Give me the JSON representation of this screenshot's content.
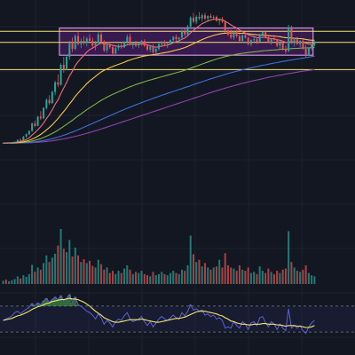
{
  "chart_data": {
    "type": "candlestick",
    "title": "",
    "xlabel": "",
    "ylabel": "",
    "axes_labels_visible": false,
    "grid": true,
    "colors": {
      "background": "#131722",
      "grid": "#1e2230",
      "candle_up": "#26a69a",
      "candle_down": "#ef5350",
      "range_box_fill": "#7b1fa2",
      "range_box_border": "#ce93d8",
      "horizontal_levels": "#f5e56b",
      "ma_fast": "#ef6c7c",
      "ma_mid": "#f5c542",
      "ma_slow": "#7cb342",
      "ma_200": "#3f6fd8",
      "ma_long": "#8e44ad",
      "oscillator_line": "#5c5fd6",
      "oscillator_signal": "#f5e56b",
      "oscillator_fill": "#4caf50"
    },
    "price_ylim": [
      0,
      100
    ],
    "horizontal_levels": [
      86,
      79,
      62
    ],
    "range_box": {
      "bar_start": 20,
      "bar_end": 108,
      "price_high": 88,
      "price_low": 71
    },
    "candles_ohlc": [
      [
        16.0,
        16.3,
        15.8,
        16.2
      ],
      [
        16.2,
        16.4,
        15.9,
        16.0
      ],
      [
        16.0,
        16.5,
        15.9,
        16.4
      ],
      [
        16.4,
        16.7,
        16.2,
        16.5
      ],
      [
        16.5,
        17.0,
        16.3,
        16.8
      ],
      [
        16.8,
        18.2,
        16.6,
        18.0
      ],
      [
        18.0,
        19.0,
        17.2,
        17.5
      ],
      [
        17.5,
        20.5,
        17.3,
        20.0
      ],
      [
        20.0,
        22.0,
        19.5,
        21.5
      ],
      [
        21.5,
        24.0,
        21.0,
        23.6
      ],
      [
        23.6,
        29.0,
        23.0,
        28.2
      ],
      [
        28.2,
        30.0,
        26.0,
        26.8
      ],
      [
        26.8,
        33.0,
        26.5,
        32.5
      ],
      [
        32.5,
        36.0,
        30.5,
        31.5
      ],
      [
        31.5,
        38.5,
        31.0,
        38.0
      ],
      [
        38.0,
        44.0,
        37.0,
        43.0
      ],
      [
        43.0,
        46.0,
        40.0,
        41.0
      ],
      [
        41.0,
        49.0,
        40.5,
        48.0
      ],
      [
        48.0,
        55.0,
        46.0,
        54.0
      ],
      [
        54.0,
        59.0,
        51.0,
        52.5
      ],
      [
        52.5,
        66.0,
        52.0,
        65.0
      ],
      [
        65.0,
        70.0,
        60.0,
        62.0
      ],
      [
        62.0,
        71.0,
        61.5,
        70.0
      ],
      [
        70.0,
        80.0,
        68.0,
        78.5
      ],
      [
        78.5,
        82.0,
        73.0,
        75.0
      ],
      [
        75.0,
        84.0,
        74.0,
        83.0
      ],
      [
        83.0,
        86.0,
        77.0,
        78.0
      ],
      [
        78.0,
        81.5,
        75.5,
        80.0
      ],
      [
        80.0,
        83.0,
        77.5,
        79.0
      ],
      [
        79.0,
        82.5,
        76.5,
        81.5
      ],
      [
        81.5,
        84.0,
        79.0,
        80.0
      ],
      [
        80.0,
        82.0,
        76.0,
        77.0
      ],
      [
        77.0,
        80.0,
        74.0,
        78.5
      ],
      [
        78.5,
        86.0,
        77.5,
        84.0
      ],
      [
        84.0,
        85.5,
        78.0,
        79.0
      ],
      [
        79.0,
        80.5,
        73.0,
        74.0
      ],
      [
        74.0,
        78.0,
        72.5,
        77.5
      ],
      [
        77.5,
        79.5,
        75.0,
        76.0
      ],
      [
        76.0,
        77.0,
        71.0,
        72.0
      ],
      [
        72.0,
        76.5,
        71.5,
        75.5
      ],
      [
        75.5,
        78.0,
        74.0,
        77.0
      ],
      [
        77.0,
        79.0,
        75.0,
        76.0
      ],
      [
        76.0,
        80.0,
        75.5,
        79.5
      ],
      [
        79.5,
        84.0,
        78.0,
        82.5
      ],
      [
        82.5,
        84.5,
        77.0,
        78.0
      ],
      [
        78.0,
        79.5,
        75.0,
        78.8
      ],
      [
        78.8,
        80.0,
        76.0,
        77.0
      ],
      [
        77.0,
        79.0,
        75.5,
        78.5
      ],
      [
        78.5,
        80.5,
        77.0,
        80.0
      ],
      [
        80.0,
        81.0,
        76.0,
        77.0
      ],
      [
        77.0,
        78.0,
        73.5,
        74.5
      ],
      [
        74.5,
        77.0,
        73.0,
        76.5
      ],
      [
        76.5,
        78.0,
        72.0,
        73.0
      ],
      [
        73.0,
        75.5,
        71.5,
        75.0
      ],
      [
        75.0,
        78.5,
        74.0,
        78.0
      ],
      [
        78.0,
        80.0,
        76.0,
        79.5
      ],
      [
        79.5,
        80.5,
        76.5,
        78.0
      ],
      [
        78.0,
        79.0,
        75.5,
        78.5
      ],
      [
        78.5,
        81.0,
        77.5,
        80.5
      ],
      [
        80.5,
        83.0,
        79.0,
        82.5
      ],
      [
        82.5,
        84.0,
        80.0,
        81.0
      ],
      [
        81.0,
        82.5,
        79.0,
        82.0
      ],
      [
        82.0,
        87.0,
        81.5,
        86.0
      ],
      [
        86.0,
        88.0,
        83.0,
        84.0
      ],
      [
        84.0,
        90.0,
        83.5,
        89.0
      ],
      [
        89.0,
        95.5,
        88.0,
        94.5
      ],
      [
        94.5,
        97.5,
        91.0,
        92.0
      ],
      [
        92.0,
        96.0,
        90.5,
        95.0
      ],
      [
        95.0,
        98.0,
        93.0,
        94.0
      ],
      [
        94.0,
        97.0,
        92.0,
        96.0
      ],
      [
        96.0,
        97.5,
        93.0,
        94.0
      ],
      [
        94.0,
        96.0,
        92.5,
        95.5
      ],
      [
        95.5,
        97.0,
        94.0,
        94.5
      ],
      [
        94.5,
        96.0,
        93.0,
        95.0
      ],
      [
        95.0,
        95.8,
        92.0,
        92.5
      ],
      [
        92.5,
        94.0,
        90.0,
        93.5
      ],
      [
        93.5,
        95.0,
        91.0,
        92.0
      ],
      [
        92.0,
        92.5,
        85.0,
        86.5
      ],
      [
        86.5,
        88.0,
        83.0,
        84.0
      ],
      [
        84.0,
        87.0,
        81.0,
        82.0
      ],
      [
        82.0,
        86.0,
        80.5,
        85.0
      ],
      [
        85.0,
        87.0,
        82.0,
        83.0
      ],
      [
        83.0,
        84.5,
        79.0,
        80.0
      ],
      [
        80.0,
        84.0,
        79.0,
        83.5
      ],
      [
        83.5,
        85.0,
        81.5,
        82.0
      ],
      [
        82.0,
        82.5,
        77.0,
        78.0
      ],
      [
        78.0,
        81.0,
        76.5,
        80.5
      ],
      [
        80.5,
        83.0,
        79.0,
        81.0
      ],
      [
        81.0,
        82.0,
        78.0,
        79.5
      ],
      [
        79.5,
        84.5,
        79.0,
        84.0
      ],
      [
        84.0,
        86.0,
        82.0,
        85.5
      ],
      [
        85.5,
        86.5,
        81.5,
        82.0
      ],
      [
        82.0,
        83.0,
        78.5,
        79.0
      ],
      [
        79.0,
        82.0,
        77.5,
        81.0
      ],
      [
        81.0,
        83.5,
        80.0,
        80.5
      ],
      [
        80.5,
        81.0,
        76.0,
        77.0
      ],
      [
        77.0,
        80.0,
        75.0,
        79.0
      ],
      [
        79.0,
        80.0,
        74.0,
        75.0
      ],
      [
        75.0,
        77.0,
        72.0,
        73.5
      ],
      [
        73.5,
        90.0,
        73.0,
        88.5
      ],
      [
        88.5,
        89.5,
        78.0,
        79.0
      ],
      [
        79.0,
        82.0,
        76.5,
        81.0
      ],
      [
        81.0,
        82.5,
        77.5,
        78.0
      ],
      [
        78.0,
        80.5,
        76.0,
        80.0
      ],
      [
        80.0,
        81.0,
        74.5,
        75.0
      ],
      [
        75.0,
        77.5,
        70.0,
        71.5
      ],
      [
        71.5,
        76.0,
        70.5,
        75.5
      ],
      [
        75.5,
        78.0,
        74.0,
        77.5
      ],
      [
        77.5,
        80.0,
        76.5,
        79.5
      ]
    ],
    "moving_averages": {
      "ma_fast": [
        16,
        16.1,
        16.2,
        16.3,
        16.4,
        16.7,
        17,
        17.5,
        18.3,
        19.3,
        21,
        22.5,
        24.3,
        26.2,
        28.5,
        31.3,
        33.8,
        36.8,
        40.2,
        43,
        47,
        50.5,
        54,
        58,
        61,
        64.5,
        67,
        69,
        71,
        73,
        74.5,
        75.5,
        76.5,
        77.8,
        78.5,
        78.3,
        78,
        77.8,
        77.2,
        76.8,
        76.6,
        76.5,
        76.8,
        77.5,
        77.8,
        77.9,
        77.8,
        77.8,
        78.1,
        78,
        77.4,
        77,
        76.4,
        76,
        76.3,
        76.8,
        77.1,
        77.3,
        77.9,
        78.8,
        79.5,
        80,
        81,
        81.8,
        83.2,
        85,
        86.5,
        88,
        89.4,
        90.7,
        91.6,
        92.4,
        93,
        93.5,
        93.6,
        93.5,
        93.2,
        92.3,
        91.2,
        90,
        89,
        88,
        86.8,
        85.8,
        84.9,
        83.8,
        83.1,
        82.6,
        82,
        82,
        82.2,
        82.1,
        81.7,
        81.4,
        81.3,
        80.8,
        80.4,
        79.8,
        79,
        79.3,
        79.4,
        79.3,
        79.3,
        79.2,
        79.1,
        78.4,
        78,
        77.9,
        78.1
      ],
      "ma_mid": [
        16,
        16,
        16.1,
        16.1,
        16.2,
        16.4,
        16.5,
        16.8,
        17.2,
        17.7,
        18.5,
        19.3,
        20.3,
        21.4,
        22.7,
        24.2,
        25.7,
        27.4,
        29.4,
        31.3,
        33.6,
        35.8,
        38,
        40.5,
        42.8,
        45.2,
        47.4,
        49.4,
        51.3,
        53.2,
        54.9,
        56.3,
        57.7,
        59.2,
        60.5,
        61.5,
        62.4,
        63.2,
        63.9,
        64.6,
        65.3,
        65.9,
        66.6,
        67.4,
        68,
        68.6,
        69.1,
        69.6,
        70.1,
        70.5,
        70.8,
        71.1,
        71.4,
        71.6,
        71.9,
        72.3,
        72.6,
        72.9,
        73.3,
        73.8,
        74.2,
        74.6,
        75.2,
        75.8,
        76.5,
        77.4,
        78.2,
        79.1,
        80,
        80.8,
        81.5,
        82.2,
        82.8,
        83.4,
        83.9,
        84.3,
        84.6,
        84.8,
        84.9,
        84.9,
        84.9,
        84.9,
        84.8,
        84.7,
        84.6,
        84.4,
        84.2,
        84,
        83.8,
        83.7,
        83.6,
        83.5,
        83.3,
        83.1,
        83,
        82.8,
        82.6,
        82.3,
        82,
        81.9,
        81.8,
        81.6,
        81.5,
        81.4,
        81.2,
        80.9,
        80.6,
        80.4,
        80.4
      ],
      "ma_slow": [
        16,
        16,
        16,
        16,
        16.1,
        16.2,
        16.3,
        16.4,
        16.6,
        16.9,
        17.3,
        17.7,
        18.2,
        18.8,
        19.5,
        20.3,
        21.1,
        22,
        23,
        24.1,
        25.3,
        26.5,
        27.7,
        29,
        30.3,
        31.7,
        33,
        34.3,
        35.6,
        36.9,
        38.1,
        39.3,
        40.4,
        41.6,
        42.7,
        43.7,
        44.7,
        45.6,
        46.5,
        47.3,
        48.1,
        48.9,
        49.7,
        50.5,
        51.2,
        51.9,
        52.6,
        53.2,
        53.8,
        54.4,
        55,
        55.5,
        56,
        56.5,
        57,
        57.5,
        58,
        58.5,
        59,
        59.5,
        60,
        60.5,
        61,
        61.6,
        62.2,
        62.8,
        63.5,
        64.1,
        64.8,
        65.5,
        66.1,
        66.8,
        67.4,
        68,
        68.6,
        69.1,
        69.6,
        70.1,
        70.5,
        70.9,
        71.2,
        71.6,
        71.9,
        72.2,
        72.4,
        72.7,
        72.9,
        73.1,
        73.3,
        73.5,
        73.7,
        73.9,
        74,
        74.2,
        74.3,
        74.4,
        74.6,
        74.7,
        74.8,
        75,
        75.1,
        75.2,
        75.3,
        75.4,
        75.5,
        75.6,
        75.6,
        75.7,
        75.8
      ],
      "ma_200": [
        16,
        16,
        16,
        16,
        16,
        16.1,
        16.1,
        16.2,
        16.3,
        16.4,
        16.6,
        16.8,
        17,
        17.3,
        17.6,
        17.9,
        18.3,
        18.7,
        19.2,
        19.7,
        20.3,
        20.9,
        21.5,
        22.2,
        22.9,
        23.6,
        24.3,
        25.1,
        25.9,
        26.7,
        27.5,
        28.3,
        29.1,
        29.9,
        30.7,
        31.5,
        32.3,
        33.1,
        33.9,
        34.7,
        35.5,
        36.3,
        37,
        37.8,
        38.5,
        39.2,
        39.9,
        40.6,
        41.3,
        42,
        42.7,
        43.3,
        44,
        44.6,
        45.2,
        45.9,
        46.5,
        47.1,
        47.7,
        48.3,
        48.9,
        49.5,
        50.1,
        50.7,
        51.3,
        51.9,
        52.6,
        53.2,
        53.8,
        54.4,
        55,
        55.6,
        56.2,
        56.8,
        57.3,
        57.9,
        58.4,
        59,
        59.5,
        60,
        60.5,
        61,
        61.4,
        61.9,
        62.3,
        62.7,
        63.1,
        63.5,
        63.9,
        64.3,
        64.7,
        65,
        65.4,
        65.7,
        66.1,
        66.4,
        66.8,
        67.1,
        67.4,
        67.7,
        68,
        68.3,
        68.6,
        68.9,
        69.2,
        69.5,
        69.8,
        70.1,
        70.4
      ],
      "ma_long": [
        16,
        16,
        16,
        16,
        16,
        16,
        16.1,
        16.1,
        16.2,
        16.2,
        16.3,
        16.4,
        16.5,
        16.7,
        16.8,
        17,
        17.2,
        17.4,
        17.7,
        18,
        18.3,
        18.6,
        19,
        19.4,
        19.8,
        20.2,
        20.6,
        21.1,
        21.6,
        22.1,
        22.6,
        23.1,
        23.7,
        24.2,
        24.8,
        25.4,
        26,
        26.6,
        27.2,
        27.8,
        28.4,
        29,
        29.6,
        30.2,
        30.8,
        31.4,
        32,
        32.6,
        33.2,
        33.8,
        34.4,
        35,
        35.6,
        36.2,
        36.8,
        37.4,
        38,
        38.6,
        39.2,
        39.8,
        40.4,
        41,
        41.6,
        42.2,
        42.8,
        43.4,
        44,
        44.6,
        45.2,
        45.8,
        46.4,
        47,
        47.6,
        48.2,
        48.7,
        49.3,
        49.8,
        50.4,
        50.9,
        51.4,
        51.9,
        52.4,
        52.9,
        53.4,
        53.8,
        54.3,
        54.7,
        55.1,
        55.5,
        55.9,
        56.3,
        56.7,
        57.1,
        57.5,
        57.8,
        58.2,
        58.5,
        58.8,
        59.2,
        59.5,
        59.8,
        60.1,
        60.4,
        60.7,
        61,
        61.3,
        61.5,
        61.8,
        62
      ]
    },
    "volume": [
      6,
      8,
      5,
      7,
      9,
      14,
      10,
      16,
      13,
      18,
      35,
      22,
      30,
      26,
      38,
      52,
      40,
      48,
      55,
      70,
      100,
      64,
      58,
      80,
      50,
      66,
      52,
      40,
      45,
      38,
      42,
      33,
      30,
      44,
      36,
      26,
      30,
      20,
      24,
      18,
      24,
      20,
      28,
      34,
      26,
      18,
      22,
      20,
      24,
      18,
      16,
      14,
      22,
      16,
      18,
      22,
      18,
      16,
      20,
      24,
      20,
      18,
      26,
      24,
      34,
      88,
      54,
      40,
      44,
      32,
      38,
      30,
      26,
      30,
      32,
      44,
      30,
      56,
      34,
      30,
      28,
      24,
      34,
      26,
      24,
      30,
      20,
      22,
      18,
      32,
      24,
      20,
      28,
      22,
      18,
      24,
      20,
      26,
      28,
      96,
      40,
      30,
      24,
      22,
      26,
      34,
      20,
      16,
      14
    ],
    "oscillator_ylim": [
      0,
      100
    ],
    "oscillator_upper_band": 70,
    "oscillator_lower_band": 30,
    "oscillator": [
      48,
      50,
      52,
      55,
      60,
      62,
      58,
      62,
      65,
      68,
      74,
      70,
      75,
      72,
      78,
      82,
      76,
      80,
      84,
      80,
      86,
      78,
      82,
      88,
      76,
      84,
      72,
      70,
      66,
      62,
      60,
      56,
      50,
      58,
      52,
      42,
      48,
      44,
      38,
      46,
      50,
      48,
      55,
      60,
      50,
      46,
      48,
      50,
      54,
      46,
      40,
      46,
      38,
      44,
      50,
      54,
      50,
      48,
      52,
      56,
      52,
      50,
      60,
      55,
      62,
      72,
      64,
      66,
      62,
      64,
      56,
      58,
      54,
      56,
      50,
      52,
      48,
      36,
      38,
      36,
      46,
      40,
      36,
      46,
      42,
      34,
      44,
      46,
      40,
      52,
      54,
      44,
      38,
      46,
      42,
      34,
      42,
      36,
      32,
      66,
      36,
      40,
      36,
      40,
      32,
      28,
      38,
      44,
      48
    ],
    "oscillator_signal": [
      48,
      49,
      50,
      51,
      53,
      55,
      56,
      58,
      60,
      62,
      65,
      67,
      69,
      70,
      72,
      74,
      75,
      77,
      78,
      79,
      80,
      80,
      81,
      82,
      81,
      81,
      80,
      78,
      76,
      73,
      70,
      66,
      62,
      59,
      56,
      52,
      50,
      48,
      46,
      45,
      45,
      46,
      47,
      48,
      49,
      49,
      49,
      49,
      50,
      49,
      48,
      47,
      46,
      45,
      45,
      46,
      47,
      48,
      49,
      50,
      51,
      51,
      52,
      53,
      55,
      57,
      59,
      61,
      62,
      62,
      62,
      61,
      60,
      59,
      58,
      56,
      55,
      52,
      50,
      47,
      46,
      44,
      43,
      42,
      42,
      41,
      41,
      42,
      42,
      42,
      43,
      43,
      42,
      42,
      42,
      41,
      41,
      40,
      39,
      40,
      40,
      40,
      39,
      39,
      38,
      37,
      37,
      38,
      40
    ]
  }
}
